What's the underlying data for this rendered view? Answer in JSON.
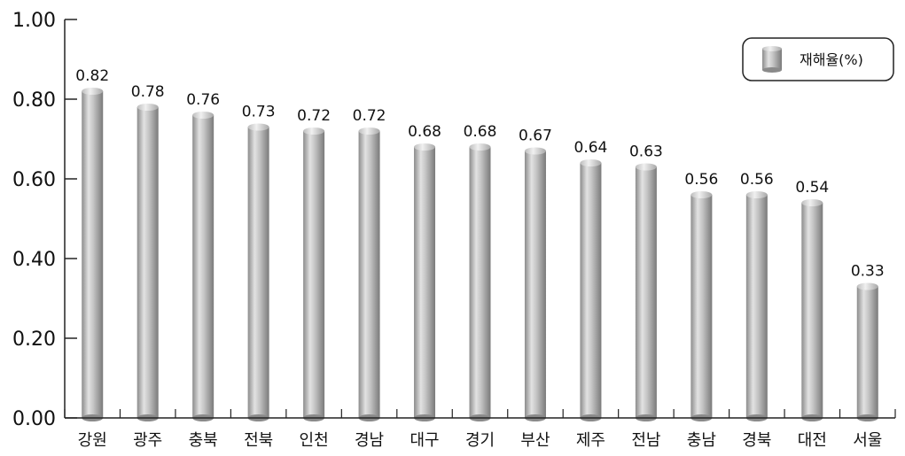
{
  "chart_data": {
    "type": "bar",
    "categories": [
      "강원",
      "광주",
      "충북",
      "전북",
      "인천",
      "경남",
      "대구",
      "경기",
      "부산",
      "제주",
      "전남",
      "충남",
      "경북",
      "대전",
      "서울"
    ],
    "series": [
      {
        "name": "재해율(%)",
        "values": [
          0.82,
          0.78,
          0.76,
          0.73,
          0.72,
          0.72,
          0.68,
          0.68,
          0.67,
          0.64,
          0.63,
          0.56,
          0.56,
          0.54,
          0.33
        ],
        "labels": [
          "0.82",
          "0.78",
          "0.76",
          "0.73",
          "0.72",
          "0.72",
          "0.68",
          "0.68",
          "0.67",
          "0.64",
          "0.63",
          "0.56",
          "0.56",
          "0.54",
          "0.33"
        ]
      }
    ],
    "ylim": [
      0,
      1.0
    ],
    "yticks": [
      0.0,
      0.2,
      0.4,
      0.6,
      0.8,
      1.0
    ],
    "ytick_labels": [
      "0.00",
      "0.20",
      "0.40",
      "0.60",
      "0.80",
      "1.00"
    ],
    "legend": {
      "position": "top-right"
    },
    "grid": false
  }
}
